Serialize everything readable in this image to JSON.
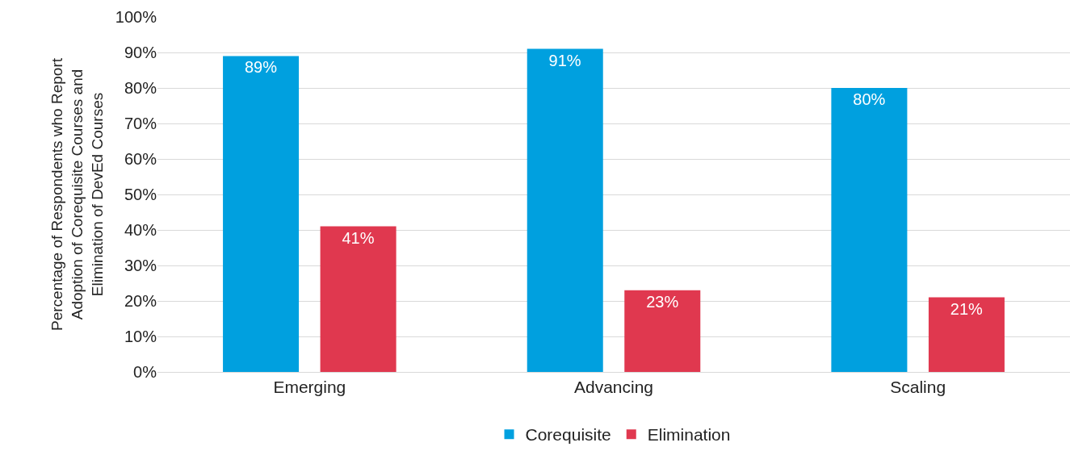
{
  "chart_data": {
    "type": "bar",
    "ylabel": "Percentage of Respondents who Report\nAdoption of Corequisite Courses and\nElimination of DevEd Courses",
    "categories": [
      "Emerging",
      "Advancing",
      "Scaling"
    ],
    "series": [
      {
        "name": "Corequisite",
        "color": "#00a0df",
        "values": [
          89,
          91,
          80
        ],
        "value_labels": [
          "89%",
          "91%",
          "80%"
        ]
      },
      {
        "name": "Elimination",
        "color": "#e0384f",
        "values": [
          41,
          23,
          21
        ],
        "value_labels": [
          "41%",
          "23%",
          "21%"
        ]
      }
    ],
    "ylim": [
      0,
      100
    ],
    "yticks": [
      {
        "value": 0,
        "label": "0%"
      },
      {
        "value": 10,
        "label": "10%"
      },
      {
        "value": 20,
        "label": "20%"
      },
      {
        "value": 30,
        "label": "30%"
      },
      {
        "value": 40,
        "label": "40%"
      },
      {
        "value": 50,
        "label": "50%"
      },
      {
        "value": 60,
        "label": "60%"
      },
      {
        "value": 70,
        "label": "70%"
      },
      {
        "value": 80,
        "label": "80%"
      },
      {
        "value": 90,
        "label": "90%"
      },
      {
        "value": 100,
        "label": "100%"
      }
    ],
    "grid": "y",
    "legend": "bottom"
  }
}
